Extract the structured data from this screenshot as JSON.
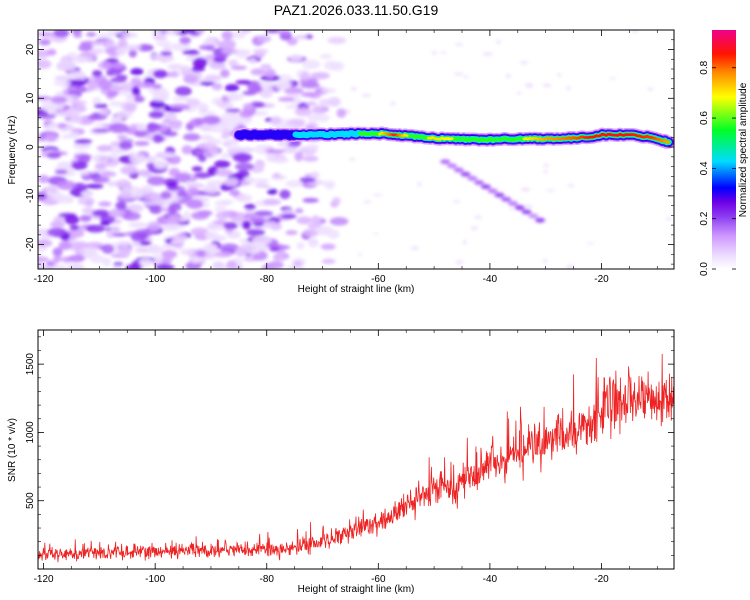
{
  "title": "PAZ1.2026.033.11.50.G19",
  "chart_data": [
    {
      "type": "heatmap",
      "title": "",
      "xlabel": "Height of straight line (km)",
      "ylabel": "Frequency (Hz)",
      "xlim": [
        -121,
        -7
      ],
      "ylim": [
        -25,
        24
      ],
      "xticks": [
        -120,
        -100,
        -80,
        -60,
        -40,
        -20
      ],
      "xtick_labels": [
        "-120",
        "-100",
        "-80",
        "-60",
        "-40",
        "-20"
      ],
      "yticks": [
        -20,
        -10,
        0,
        10,
        20
      ],
      "ytick_labels": [
        "-20",
        "-10",
        "0",
        "10",
        "20"
      ],
      "colorbar": {
        "label": "Normalized spectral amplitude",
        "range": [
          0,
          0.95
        ],
        "ticks": [
          0.0,
          0.2,
          0.4,
          0.6,
          0.8
        ],
        "tick_labels": [
          "0.0",
          "0.2",
          "0.4",
          "0.6",
          "0.8"
        ]
      },
      "ridge": {
        "description": "main frequency line",
        "x": [
          -85,
          -80,
          -75,
          -72,
          -65,
          -60,
          -57,
          -54,
          -50,
          -45,
          -40,
          -35,
          -30,
          -25,
          -22,
          -20,
          -15,
          -11,
          -8
        ],
        "freq": [
          2.5,
          2.5,
          2.5,
          2.5,
          2.7,
          2.8,
          2.5,
          2.2,
          1.8,
          1.6,
          1.5,
          1.7,
          1.7,
          1.8,
          2.1,
          2.5,
          2.5,
          2.0,
          1.0
        ],
        "amplitude": [
          0.3,
          0.35,
          0.45,
          0.5,
          0.55,
          0.7,
          0.9,
          0.65,
          0.75,
          0.7,
          0.6,
          0.7,
          0.8,
          0.85,
          0.9,
          0.92,
          0.9,
          0.88,
          0.8
        ]
      },
      "noise_region_x": [
        -121,
        -66
      ],
      "secondary_trace": {
        "x": [
          -48,
          -31
        ],
        "freq": [
          -3,
          -15
        ]
      }
    },
    {
      "type": "line",
      "title": "",
      "xlabel": "Height of straight line (km)",
      "ylabel": "SNR (10 * v/v)",
      "xlim": [
        -121,
        -7
      ],
      "ylim": [
        0,
        1750
      ],
      "xticks": [
        -120,
        -100,
        -80,
        -60,
        -40,
        -20
      ],
      "xtick_labels": [
        "-120",
        "-100",
        "-80",
        "-60",
        "-40",
        "-20"
      ],
      "yticks": [
        500,
        1000,
        1500
      ],
      "ytick_labels": [
        "500",
        "1000",
        "1500"
      ],
      "color": "#ee2222",
      "trend_x": [
        -121,
        -110,
        -100,
        -90,
        -80,
        -75,
        -70,
        -65,
        -60,
        -55,
        -50,
        -45,
        -40,
        -35,
        -30,
        -25,
        -22,
        -20,
        -15,
        -10,
        -7
      ],
      "trend_y": [
        100,
        120,
        130,
        140,
        140,
        150,
        200,
        260,
        350,
        450,
        580,
        640,
        760,
        850,
        920,
        1000,
        1050,
        1150,
        1250,
        1200,
        1300
      ],
      "spread": [
        50,
        55,
        60,
        60,
        60,
        65,
        70,
        80,
        100,
        120,
        140,
        150,
        160,
        170,
        180,
        200,
        220,
        230,
        230,
        220,
        200
      ]
    }
  ]
}
